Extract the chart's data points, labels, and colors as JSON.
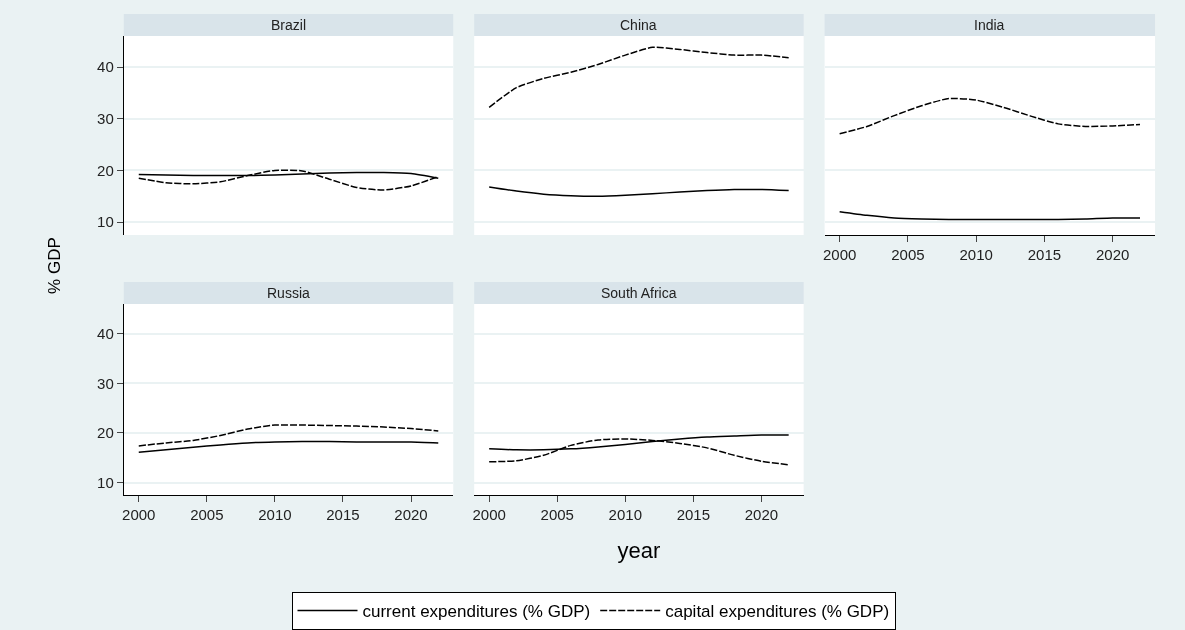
{
  "chart_data": [
    {
      "type": "line",
      "title": "Brazil",
      "ylabel": "% GDP",
      "x": [
        2000,
        2002,
        2004,
        2006,
        2008,
        2010,
        2012,
        2014,
        2016,
        2018,
        2020,
        2022
      ],
      "xlim": [
        1998.9,
        2023.1
      ],
      "xticks": [
        2000,
        2005,
        2010,
        2015,
        2020
      ],
      "ylim": [
        7.5,
        46
      ],
      "yticks": [
        10,
        20,
        30,
        40
      ],
      "tick_labels": "y",
      "grid": "y",
      "legend": "bottom",
      "series": [
        {
          "name": "current expenditures (% GDP)",
          "color": "#000000",
          "line_style": "solid",
          "values": [
            19.2,
            19.1,
            19.0,
            19.0,
            19.0,
            19.1,
            19.3,
            19.5,
            19.6,
            19.6,
            19.4,
            18.5
          ]
        },
        {
          "name": "capital expenditures (% GDP)",
          "color": "#000000",
          "line_style": "dashed",
          "values": [
            18.5,
            17.6,
            17.4,
            17.8,
            19.0,
            20.0,
            19.9,
            18.3,
            16.7,
            16.2,
            17.0,
            18.8
          ]
        }
      ]
    },
    {
      "type": "line",
      "title": "China",
      "x": [
        2000,
        2002,
        2004,
        2006,
        2008,
        2010,
        2012,
        2014,
        2016,
        2018,
        2020,
        2022
      ],
      "xlim": [
        1998.9,
        2023.1
      ],
      "xticks": [
        2000,
        2005,
        2010,
        2015,
        2020
      ],
      "ylim": [
        7.5,
        46
      ],
      "yticks": [
        10,
        20,
        30,
        40
      ],
      "tick_labels": false,
      "grid": "y",
      "series": [
        {
          "color": "#000000",
          "line_style": "solid",
          "values": [
            16.8,
            16.0,
            15.4,
            15.1,
            15.0,
            15.2,
            15.5,
            15.8,
            16.1,
            16.3,
            16.3,
            16.1
          ]
        },
        {
          "color": "#000000",
          "line_style": "dashed",
          "values": [
            32.2,
            36.0,
            37.8,
            39.0,
            40.5,
            42.3,
            43.8,
            43.4,
            42.8,
            42.3,
            42.3,
            41.8
          ]
        }
      ]
    },
    {
      "type": "line",
      "title": "India",
      "x": [
        2000,
        2002,
        2004,
        2006,
        2008,
        2010,
        2012,
        2014,
        2016,
        2018,
        2020,
        2022
      ],
      "xlim": [
        1998.9,
        2023.1
      ],
      "xticks": [
        2000,
        2005,
        2010,
        2015,
        2020
      ],
      "ylim": [
        7.5,
        46
      ],
      "yticks": [
        10,
        20,
        30,
        40
      ],
      "tick_labels": "x",
      "grid": "y",
      "series": [
        {
          "color": "#000000",
          "line_style": "solid",
          "values": [
            12.0,
            11.3,
            10.8,
            10.6,
            10.5,
            10.5,
            10.5,
            10.5,
            10.5,
            10.6,
            10.8,
            10.8
          ]
        },
        {
          "color": "#000000",
          "line_style": "dashed",
          "values": [
            27.1,
            28.5,
            30.6,
            32.5,
            33.9,
            33.6,
            32.2,
            30.5,
            29.0,
            28.5,
            28.6,
            28.9
          ]
        }
      ]
    },
    {
      "type": "line",
      "title": "Russia",
      "x": [
        2000,
        2002,
        2004,
        2006,
        2008,
        2010,
        2012,
        2014,
        2016,
        2018,
        2020,
        2022
      ],
      "xlim": [
        1998.9,
        2023.1
      ],
      "xticks": [
        2000,
        2005,
        2010,
        2015,
        2020
      ],
      "ylim": [
        7.5,
        46
      ],
      "yticks": [
        10,
        20,
        30,
        40
      ],
      "grid": "y",
      "series": [
        {
          "color": "#000000",
          "line_style": "solid",
          "values": [
            16.1,
            16.6,
            17.1,
            17.6,
            18.0,
            18.2,
            18.3,
            18.3,
            18.2,
            18.2,
            18.2,
            18.0
          ]
        },
        {
          "color": "#000000",
          "line_style": "dashed",
          "values": [
            17.4,
            18.0,
            18.5,
            19.5,
            20.8,
            21.6,
            21.6,
            21.5,
            21.4,
            21.2,
            20.9,
            20.4
          ]
        }
      ]
    },
    {
      "type": "line",
      "title": "South Africa",
      "xlabel": "year",
      "x": [
        2000,
        2002,
        2004,
        2006,
        2008,
        2010,
        2012,
        2014,
        2016,
        2018,
        2020,
        2022
      ],
      "xlim": [
        1998.9,
        2023.1
      ],
      "xticks": [
        2000,
        2005,
        2010,
        2015,
        2020
      ],
      "ylim": [
        7.5,
        46
      ],
      "yticks": [
        10,
        20,
        30,
        40
      ],
      "tick_labels": "x",
      "grid": "y",
      "series": [
        {
          "color": "#000000",
          "line_style": "solid",
          "values": [
            16.8,
            16.6,
            16.6,
            16.8,
            17.2,
            17.7,
            18.3,
            18.8,
            19.2,
            19.4,
            19.6,
            19.6
          ]
        },
        {
          "color": "#000000",
          "line_style": "dashed",
          "values": [
            14.2,
            14.4,
            15.5,
            17.5,
            18.6,
            18.8,
            18.5,
            17.9,
            17.0,
            15.5,
            14.3,
            13.6
          ]
        }
      ]
    }
  ]
}
